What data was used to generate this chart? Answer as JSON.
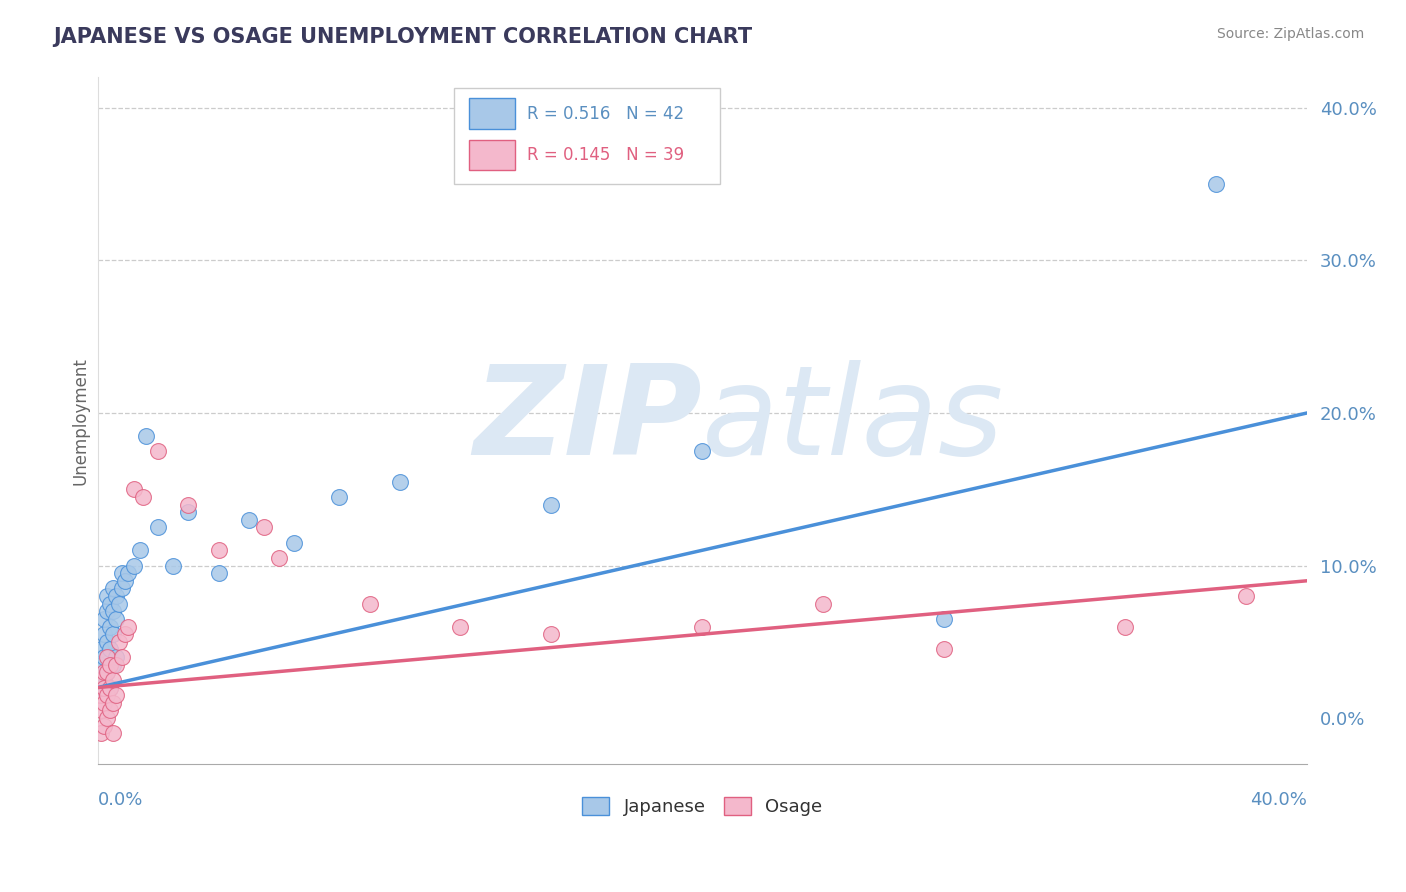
{
  "title": "JAPANESE VS OSAGE UNEMPLOYMENT CORRELATION CHART",
  "source": "Source: ZipAtlas.com",
  "ylabel": "Unemployment",
  "ytick_values": [
    0.0,
    0.1,
    0.2,
    0.3,
    0.4
  ],
  "xlim": [
    0,
    0.4
  ],
  "ylim": [
    -0.03,
    0.42
  ],
  "legend_japanese": "Japanese",
  "legend_osage": "Osage",
  "R_japanese": 0.516,
  "N_japanese": 42,
  "R_osage": 0.145,
  "N_osage": 39,
  "color_japanese": "#a8c8e8",
  "color_osage": "#f4b8cc",
  "color_line_japanese": "#4a90d9",
  "color_line_osage": "#e06080",
  "color_title": "#3a3a5c",
  "color_axis_labels": "#5a8fc0",
  "background_color": "#ffffff",
  "watermark_zip": "ZIP",
  "watermark_atlas": "atlas",
  "watermark_color": "#dce8f4",
  "grid_color": "#cccccc",
  "japanese_x": [
    0.001,
    0.001,
    0.001,
    0.002,
    0.002,
    0.002,
    0.002,
    0.003,
    0.003,
    0.003,
    0.003,
    0.004,
    0.004,
    0.004,
    0.004,
    0.005,
    0.005,
    0.005,
    0.005,
    0.006,
    0.006,
    0.006,
    0.007,
    0.008,
    0.008,
    0.009,
    0.01,
    0.012,
    0.014,
    0.016,
    0.02,
    0.025,
    0.03,
    0.04,
    0.05,
    0.065,
    0.08,
    0.1,
    0.15,
    0.2,
    0.28,
    0.37
  ],
  "japanese_y": [
    0.02,
    0.035,
    0.045,
    0.025,
    0.04,
    0.055,
    0.065,
    0.03,
    0.05,
    0.07,
    0.08,
    0.02,
    0.045,
    0.06,
    0.075,
    0.035,
    0.055,
    0.07,
    0.085,
    0.04,
    0.065,
    0.08,
    0.075,
    0.085,
    0.095,
    0.09,
    0.095,
    0.1,
    0.11,
    0.185,
    0.125,
    0.1,
    0.135,
    0.095,
    0.13,
    0.115,
    0.145,
    0.155,
    0.14,
    0.175,
    0.065,
    0.35
  ],
  "osage_x": [
    0.001,
    0.001,
    0.001,
    0.001,
    0.002,
    0.002,
    0.002,
    0.002,
    0.003,
    0.003,
    0.003,
    0.003,
    0.004,
    0.004,
    0.004,
    0.005,
    0.005,
    0.005,
    0.006,
    0.006,
    0.007,
    0.008,
    0.009,
    0.01,
    0.012,
    0.015,
    0.02,
    0.03,
    0.04,
    0.055,
    0.06,
    0.09,
    0.12,
    0.15,
    0.2,
    0.24,
    0.28,
    0.34,
    0.38
  ],
  "osage_y": [
    -0.01,
    0.005,
    0.015,
    0.025,
    -0.005,
    0.01,
    0.02,
    0.03,
    0.0,
    0.015,
    0.03,
    0.04,
    0.005,
    0.02,
    0.035,
    -0.01,
    0.01,
    0.025,
    0.015,
    0.035,
    0.05,
    0.04,
    0.055,
    0.06,
    0.15,
    0.145,
    0.175,
    0.14,
    0.11,
    0.125,
    0.105,
    0.075,
    0.06,
    0.055,
    0.06,
    0.075,
    0.045,
    0.06,
    0.08
  ],
  "line_japanese_x0": 0.0,
  "line_japanese_y0": 0.02,
  "line_japanese_x1": 0.4,
  "line_japanese_y1": 0.2,
  "line_osage_x0": 0.0,
  "line_osage_y0": 0.02,
  "line_osage_x1": 0.4,
  "line_osage_y1": 0.09
}
